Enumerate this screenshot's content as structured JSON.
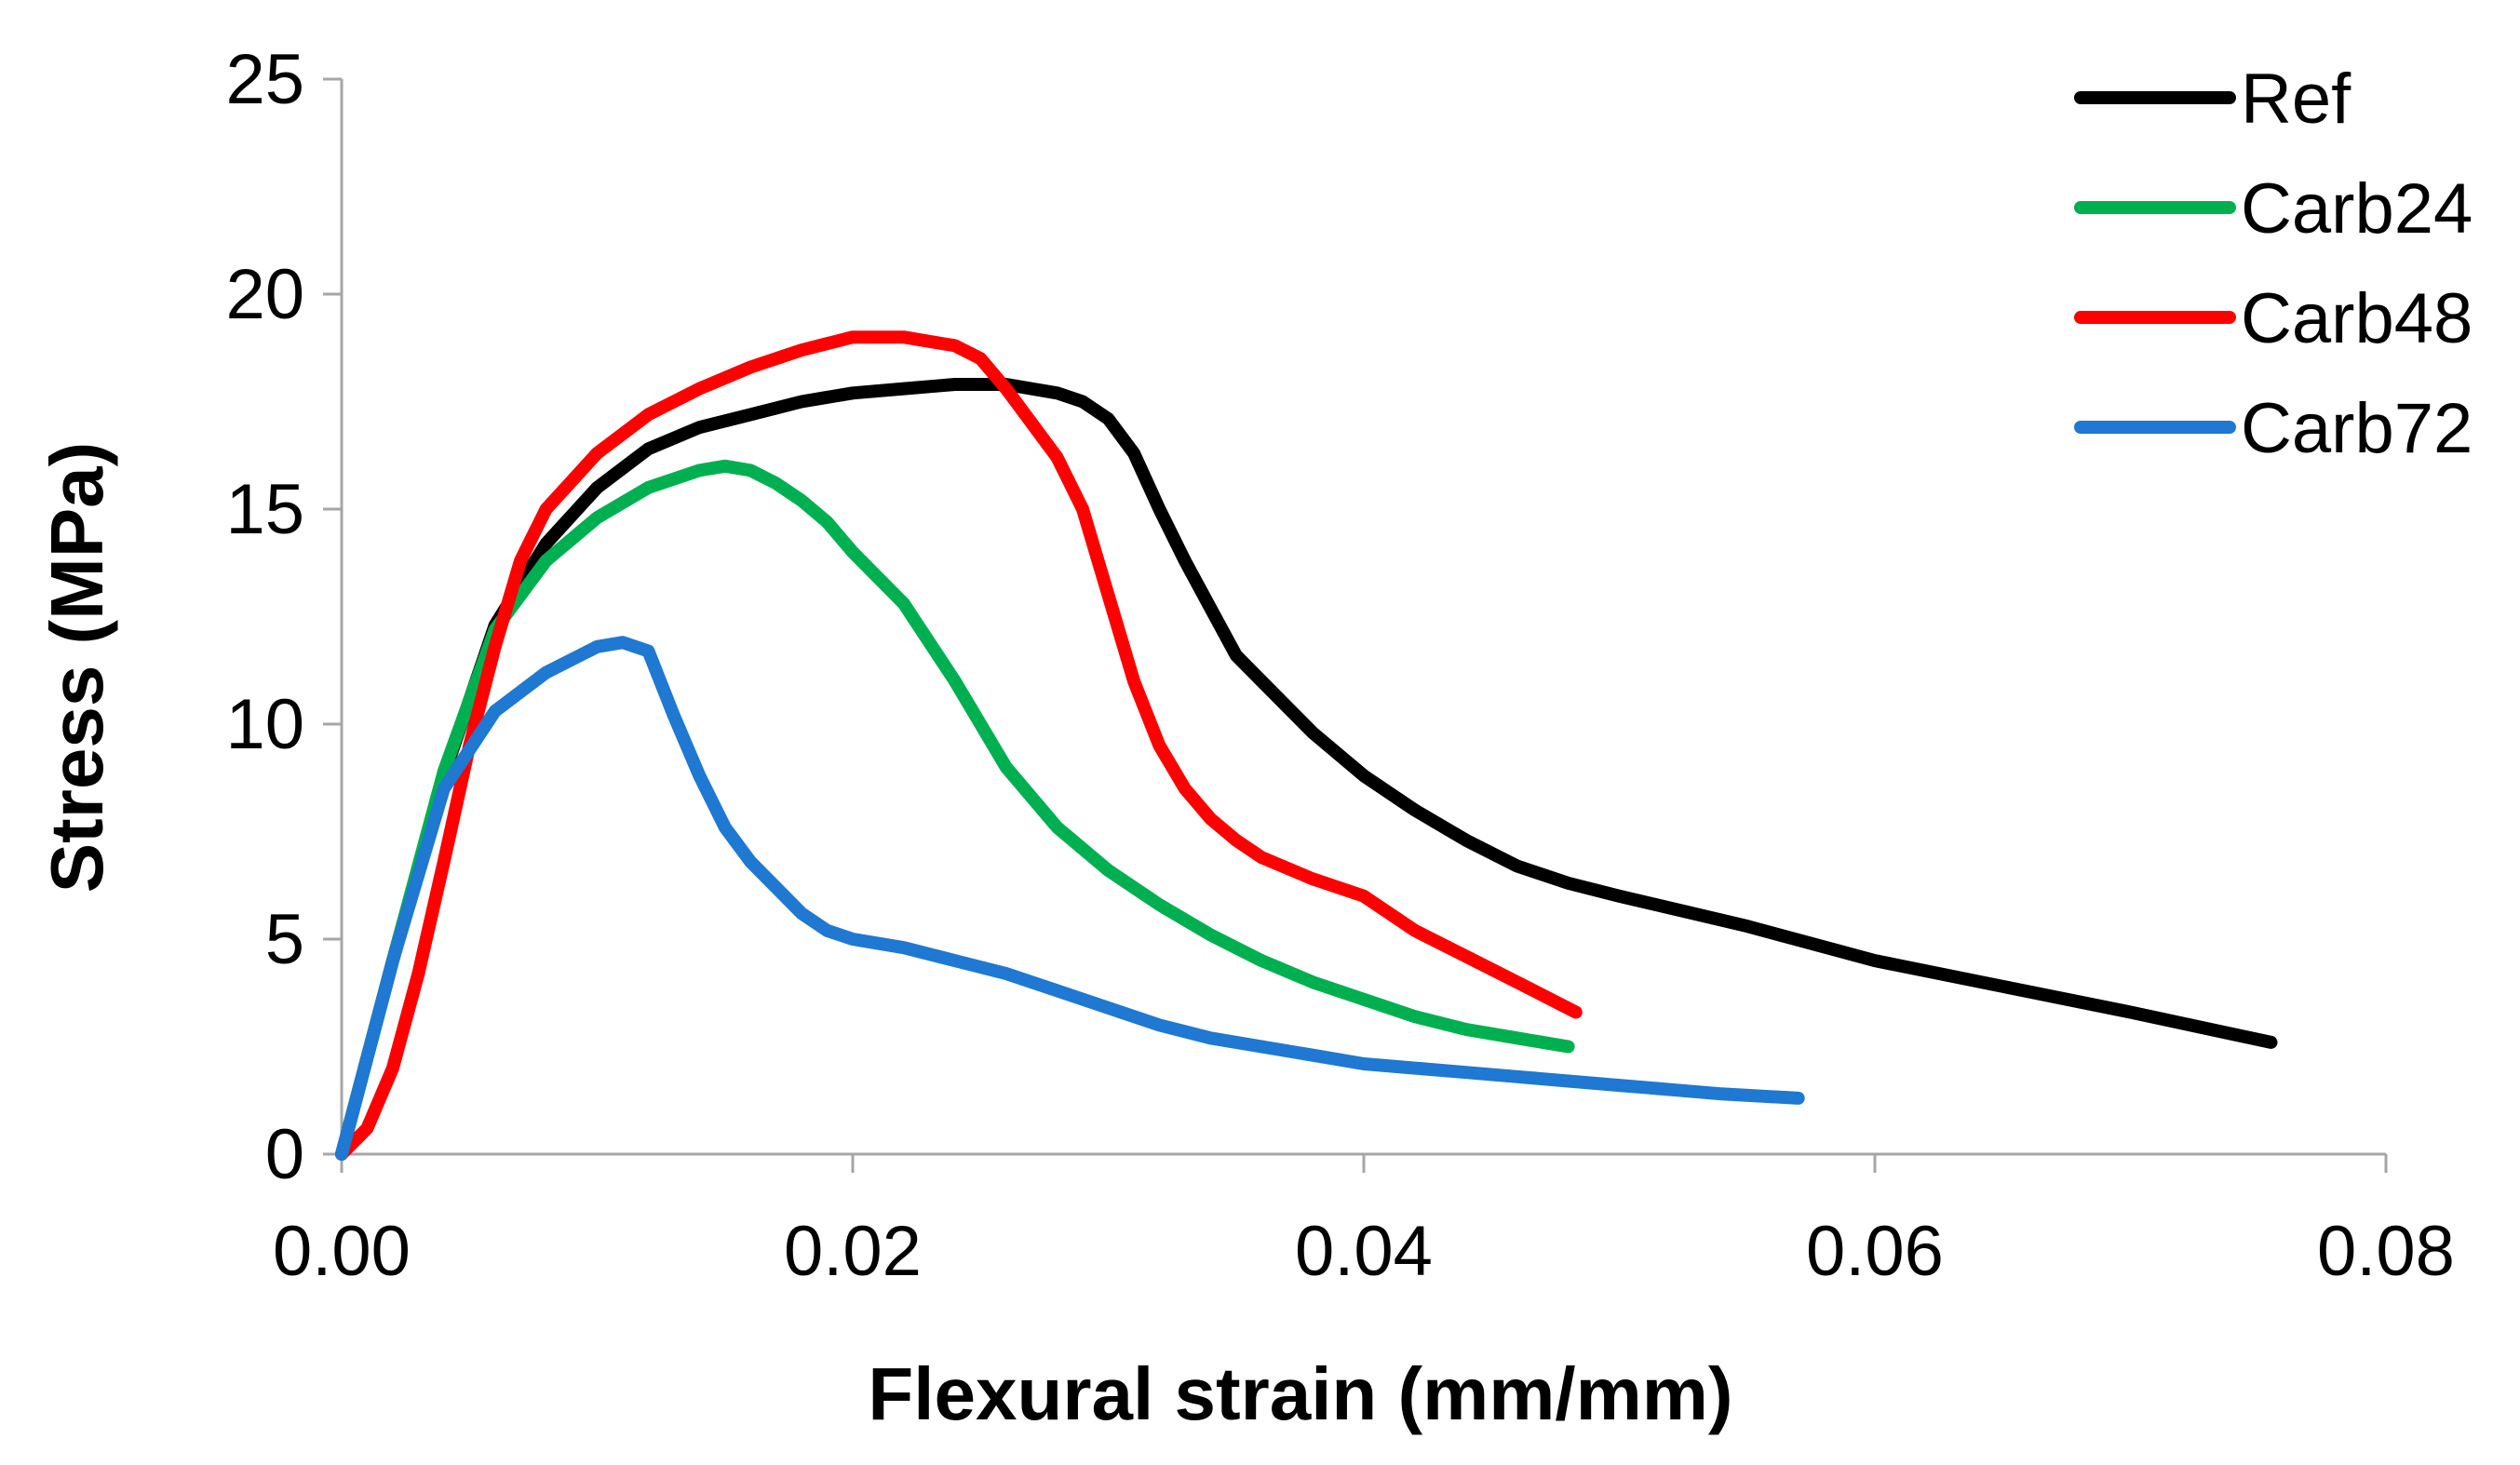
{
  "chart_data": {
    "type": "line",
    "title": "",
    "xlabel": "Flexural strain (mm/mm)",
    "ylabel": "Stress (MPa)",
    "xlim": [
      0,
      0.08
    ],
    "ylim": [
      0,
      25
    ],
    "x_ticks": [
      "0.00",
      "0.02",
      "0.04",
      "0.06",
      "0.08"
    ],
    "x_tick_values": [
      0,
      0.02,
      0.04,
      0.06,
      0.08
    ],
    "y_ticks": [
      "0",
      "5",
      "10",
      "15",
      "20",
      "25"
    ],
    "y_tick_values": [
      0,
      5,
      10,
      15,
      20,
      25
    ],
    "grid": false,
    "legend_position": "top-right",
    "series": [
      {
        "name": "Ref",
        "color": "#000000",
        "x": [
          0,
          0.002,
          0.004,
          0.006,
          0.008,
          0.01,
          0.012,
          0.014,
          0.016,
          0.018,
          0.02,
          0.022,
          0.024,
          0.026,
          0.028,
          0.029,
          0.03,
          0.031,
          0.032,
          0.033,
          0.034,
          0.035,
          0.036,
          0.038,
          0.04,
          0.042,
          0.044,
          0.046,
          0.048,
          0.05,
          0.055,
          0.06,
          0.065,
          0.07,
          0.0755
        ],
        "y": [
          0,
          4.5,
          8.8,
          12.3,
          14.2,
          15.5,
          16.4,
          16.9,
          17.2,
          17.5,
          17.7,
          17.8,
          17.9,
          17.9,
          17.7,
          17.5,
          17.1,
          16.3,
          15.0,
          13.8,
          12.7,
          11.6,
          11.0,
          9.8,
          8.8,
          8.0,
          7.3,
          6.7,
          6.3,
          6.0,
          5.3,
          4.5,
          3.9,
          3.3,
          2.6
        ]
      },
      {
        "name": "Carb24",
        "color": "#00b050",
        "x": [
          0,
          0.002,
          0.004,
          0.006,
          0.008,
          0.01,
          0.012,
          0.014,
          0.015,
          0.016,
          0.017,
          0.018,
          0.019,
          0.02,
          0.022,
          0.024,
          0.026,
          0.028,
          0.03,
          0.032,
          0.034,
          0.036,
          0.038,
          0.04,
          0.042,
          0.044,
          0.046,
          0.048
        ],
        "y": [
          0,
          4.5,
          8.9,
          12.2,
          13.8,
          14.8,
          15.5,
          15.9,
          16.0,
          15.9,
          15.6,
          15.2,
          14.7,
          14.0,
          12.8,
          11.0,
          9.0,
          7.6,
          6.6,
          5.8,
          5.1,
          4.5,
          4.0,
          3.6,
          3.2,
          2.9,
          2.7,
          2.5
        ]
      },
      {
        "name": "Carb48",
        "color": "#ff0000",
        "x": [
          0,
          0.001,
          0.002,
          0.003,
          0.004,
          0.005,
          0.006,
          0.007,
          0.008,
          0.01,
          0.012,
          0.014,
          0.016,
          0.018,
          0.02,
          0.022,
          0.024,
          0.025,
          0.026,
          0.027,
          0.028,
          0.029,
          0.03,
          0.031,
          0.032,
          0.033,
          0.034,
          0.035,
          0.036,
          0.038,
          0.04,
          0.042,
          0.044,
          0.046,
          0.0483
        ],
        "y": [
          0,
          0.6,
          2.0,
          4.2,
          6.8,
          9.5,
          11.8,
          13.8,
          15.0,
          16.3,
          17.2,
          17.8,
          18.3,
          18.7,
          19.0,
          19.0,
          18.8,
          18.5,
          17.8,
          17.0,
          16.2,
          15.0,
          13.0,
          11.0,
          9.5,
          8.5,
          7.8,
          7.3,
          6.9,
          6.4,
          6.0,
          5.2,
          4.6,
          4.0,
          3.3
        ]
      },
      {
        "name": "Carb72",
        "color": "#1f78d1",
        "x": [
          0,
          0.002,
          0.004,
          0.006,
          0.008,
          0.01,
          0.011,
          0.012,
          0.013,
          0.014,
          0.015,
          0.016,
          0.017,
          0.018,
          0.019,
          0.02,
          0.022,
          0.024,
          0.026,
          0.028,
          0.03,
          0.032,
          0.034,
          0.036,
          0.038,
          0.04,
          0.042,
          0.044,
          0.046,
          0.048,
          0.05,
          0.052,
          0.054,
          0.057
        ],
        "y": [
          0,
          4.5,
          8.5,
          10.3,
          11.2,
          11.8,
          11.9,
          11.7,
          10.2,
          8.8,
          7.6,
          6.8,
          6.2,
          5.6,
          5.2,
          5.0,
          4.8,
          4.5,
          4.2,
          3.8,
          3.4,
          3.0,
          2.7,
          2.5,
          2.3,
          2.1,
          2.0,
          1.9,
          1.8,
          1.7,
          1.6,
          1.5,
          1.4,
          1.3
        ]
      }
    ]
  }
}
